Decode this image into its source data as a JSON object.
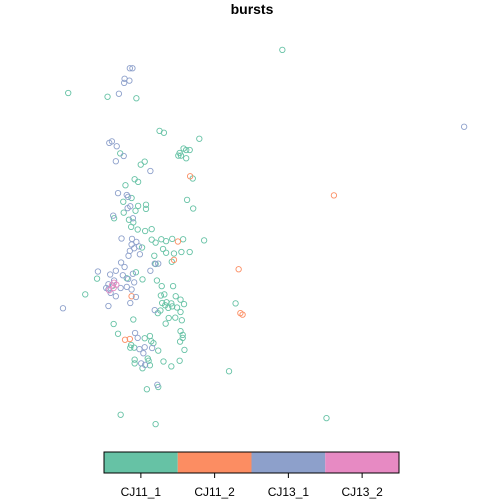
{
  "chart_data": {
    "type": "scatter",
    "title": "bursts",
    "xlabel": "",
    "ylabel": "",
    "xlim": [
      0,
      100
    ],
    "ylim": [
      0,
      100
    ],
    "grid": false,
    "legend": {
      "placement": "bottom",
      "style": "color-bar",
      "entries": [
        {
          "name": "CJ11_1",
          "color": "#66C2A5"
        },
        {
          "name": "CJ11_2",
          "color": "#FC8D62"
        },
        {
          "name": "CJ13_1",
          "color": "#8DA0CB"
        },
        {
          "name": "CJ13_2",
          "color": "#E78AC3"
        }
      ]
    },
    "series": [
      {
        "name": "CJ11_1",
        "color": "#66C2A5",
        "points": [
          [
            56.6,
            97.1
          ],
          [
            7.6,
            85.6
          ],
          [
            16.6,
            84.6
          ],
          [
            23.2,
            84.2
          ],
          [
            28.5,
            75.5
          ],
          [
            29.5,
            75.0
          ],
          [
            37.6,
            73.4
          ],
          [
            34.0,
            70.8
          ],
          [
            34.6,
            70.4
          ],
          [
            33.1,
            69.6
          ],
          [
            33.4,
            68.9
          ],
          [
            35.4,
            70.4
          ],
          [
            34.6,
            68.2
          ],
          [
            32.8,
            68.9
          ],
          [
            19.5,
            69.5
          ],
          [
            24.2,
            66.5
          ],
          [
            25.1,
            67.3
          ],
          [
            36.1,
            62.8
          ],
          [
            22.8,
            62.6
          ],
          [
            20.7,
            61.0
          ],
          [
            23.6,
            61.9
          ],
          [
            22.1,
            57.6
          ],
          [
            20.2,
            56.6
          ],
          [
            23.6,
            55.5
          ],
          [
            25.4,
            55.8
          ],
          [
            25.4,
            54.7
          ],
          [
            23.0,
            54.2
          ],
          [
            34.8,
            57.1
          ],
          [
            36.2,
            54.8
          ],
          [
            20.3,
            53.7
          ],
          [
            18.1,
            52.2
          ],
          [
            21.5,
            51.8
          ],
          [
            22.5,
            51.1
          ],
          [
            22.0,
            49.9
          ],
          [
            23.5,
            49.2
          ],
          [
            26.7,
            49.3
          ],
          [
            25.2,
            48.8
          ],
          [
            26.7,
            46.5
          ],
          [
            28.9,
            46.6
          ],
          [
            30.0,
            46.1
          ],
          [
            31.4,
            46.7
          ],
          [
            33.9,
            46.6
          ],
          [
            38.7,
            46.3
          ],
          [
            24.5,
            44.4
          ],
          [
            27.6,
            45.7
          ],
          [
            29.3,
            44.0
          ],
          [
            27.3,
            42.2
          ],
          [
            30.0,
            43.0
          ],
          [
            31.8,
            42.8
          ],
          [
            33.5,
            43.2
          ],
          [
            35.4,
            43.2
          ],
          [
            31.3,
            40.6
          ],
          [
            27.6,
            40.0
          ],
          [
            23.1,
            37.8
          ],
          [
            21.0,
            36.2
          ],
          [
            24.6,
            35.9
          ],
          [
            17.8,
            34.2
          ],
          [
            14.2,
            36.1
          ],
          [
            11.5,
            31.9
          ],
          [
            27.9,
            35.6
          ],
          [
            29.0,
            34.1
          ],
          [
            31.6,
            34.1
          ],
          [
            28.8,
            31.6
          ],
          [
            29.6,
            31.9
          ],
          [
            29.1,
            29.6
          ],
          [
            30.1,
            29.8
          ],
          [
            31.2,
            29.5
          ],
          [
            30.5,
            28.3
          ],
          [
            32.2,
            31.4
          ],
          [
            33.3,
            30.5
          ],
          [
            32.5,
            28.4
          ],
          [
            34.1,
            29.3
          ],
          [
            31.4,
            28.7
          ],
          [
            29.8,
            29.0
          ],
          [
            33.3,
            27.2
          ],
          [
            28.7,
            27.6
          ],
          [
            28.1,
            26.9
          ],
          [
            30.6,
            25.6
          ],
          [
            32.1,
            25.7
          ],
          [
            33.6,
            25.0
          ],
          [
            29.9,
            24.1
          ],
          [
            22.5,
            25.2
          ],
          [
            18.0,
            24.0
          ],
          [
            19.0,
            21.4
          ],
          [
            25.1,
            20.2
          ],
          [
            26.3,
            20.8
          ],
          [
            33.3,
            22.1
          ],
          [
            26.6,
            19.4
          ],
          [
            27.1,
            18.9
          ],
          [
            28.2,
            16.9
          ],
          [
            22.7,
            17.7
          ],
          [
            22.0,
            18.4
          ],
          [
            21.8,
            17.7
          ],
          [
            22.8,
            14.5
          ],
          [
            22.8,
            13.5
          ],
          [
            24.6,
            12.2
          ],
          [
            25.8,
            14.8
          ],
          [
            26.0,
            14.2
          ],
          [
            26.3,
            13.0
          ],
          [
            29.4,
            14.0
          ],
          [
            31.2,
            12.7
          ],
          [
            33.1,
            14.2
          ],
          [
            33.8,
            20.3
          ],
          [
            33.2,
            19.3
          ],
          [
            44.4,
            11.4
          ],
          [
            45.9,
            29.5
          ],
          [
            25.6,
            6.6
          ],
          [
            28.2,
            7.2
          ],
          [
            19.6,
            -0.2
          ],
          [
            27.6,
            -2.7
          ],
          [
            33.8,
            21.1
          ],
          [
            34.2,
            17.1
          ],
          [
            66.7,
            -1.1
          ]
        ]
      },
      {
        "name": "CJ11_2",
        "color": "#FC8D62",
        "points": [
          [
            35.5,
            63.4
          ],
          [
            68.4,
            58.3
          ],
          [
            32.7,
            46.0
          ],
          [
            31.8,
            41.1
          ],
          [
            46.6,
            38.6
          ],
          [
            47.0,
            26.9
          ],
          [
            47.5,
            26.5
          ],
          [
            22.1,
            31.4
          ],
          [
            21.7,
            20.0
          ],
          [
            20.6,
            19.8
          ]
        ]
      },
      {
        "name": "CJ13_1",
        "color": "#8DA0CB",
        "points": [
          [
            21.7,
            92.2
          ],
          [
            22.3,
            92.2
          ],
          [
            20.5,
            89.4
          ],
          [
            21.6,
            88.9
          ],
          [
            20.4,
            88.3
          ],
          [
            19.2,
            85.4
          ],
          [
            98.2,
            76.6
          ],
          [
            17.6,
            72.7
          ],
          [
            17.0,
            72.3
          ],
          [
            18.7,
            71.4
          ],
          [
            18.5,
            67.4
          ],
          [
            20.3,
            68.8
          ],
          [
            26.4,
            64.8
          ],
          [
            21.0,
            58.4
          ],
          [
            19.0,
            58.9
          ],
          [
            21.3,
            57.9
          ],
          [
            17.9,
            52.9
          ],
          [
            21.2,
            54.9
          ],
          [
            21.8,
            55.4
          ],
          [
            22.4,
            52.2
          ],
          [
            19.8,
            46.8
          ],
          [
            22.2,
            46.7
          ],
          [
            22.1,
            45.2
          ],
          [
            22.7,
            44.2
          ],
          [
            21.7,
            43.5
          ],
          [
            23.2,
            45.9
          ],
          [
            23.8,
            44.7
          ],
          [
            21.4,
            42.2
          ],
          [
            24.0,
            42.6
          ],
          [
            19.7,
            40.4
          ],
          [
            20.5,
            39.2
          ],
          [
            18.5,
            38.2
          ],
          [
            17.2,
            37.2
          ],
          [
            18.1,
            35.6
          ],
          [
            16.8,
            34.6
          ],
          [
            16.8,
            33.2
          ],
          [
            17.3,
            32.3
          ],
          [
            19.6,
            33.6
          ],
          [
            21.0,
            33.9
          ],
          [
            21.3,
            36.0
          ],
          [
            20.1,
            37.0
          ],
          [
            22.4,
            37.4
          ],
          [
            22.7,
            35.1
          ],
          [
            22.1,
            33.2
          ],
          [
            14.4,
            38.0
          ],
          [
            16.3,
            33.6
          ],
          [
            16.8,
            28.8
          ],
          [
            18.5,
            31.4
          ],
          [
            21.8,
            29.6
          ],
          [
            23.1,
            31.2
          ],
          [
            26.4,
            38.2
          ],
          [
            28.2,
            40.1
          ],
          [
            27.4,
            40.1
          ],
          [
            23.5,
            20.3
          ],
          [
            23.9,
            17.3
          ],
          [
            24.8,
            16.2
          ],
          [
            24.3,
            13.5
          ],
          [
            25.2,
            13.1
          ],
          [
            25.1,
            17.8
          ],
          [
            26.8,
            17.6
          ],
          [
            22.9,
            21.6
          ],
          [
            6.4,
            28.2
          ],
          [
            27.4,
            27.7
          ],
          [
            28.0,
            7.8
          ]
        ]
      },
      {
        "name": "CJ13_2",
        "color": "#E78AC3",
        "points": [
          [
            17.6,
            34.3
          ],
          [
            18.0,
            33.6
          ],
          [
            18.6,
            34.5
          ],
          [
            17.0,
            33.0
          ],
          [
            18.1,
            35.0
          ]
        ]
      }
    ]
  }
}
